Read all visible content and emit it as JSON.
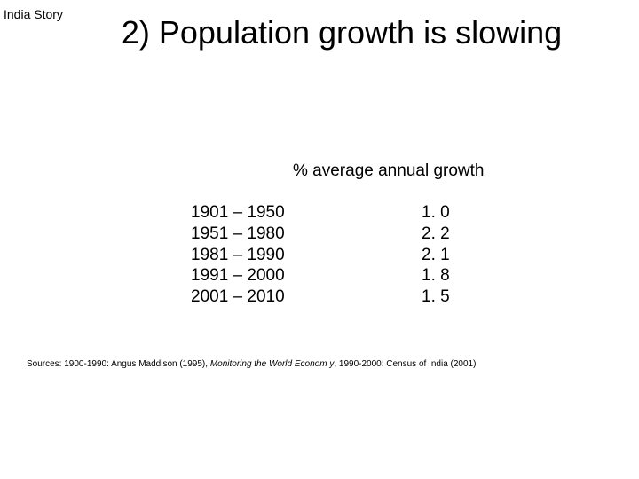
{
  "corner_label": "India Story",
  "title": "2) Population growth is slowing",
  "table_header": " % average annual growth",
  "rows": [
    {
      "period": "1901 – 1950",
      "value": "1. 0"
    },
    {
      "period": "1951 – 1980",
      "value": "2. 2"
    },
    {
      "period": "1981 – 1990",
      "value": "2. 1"
    },
    {
      "period": "1991 – 2000",
      "value": "1. 8"
    },
    {
      "period": "2001 – 2010",
      "value": "1. 5"
    }
  ],
  "sources": {
    "prefix": "Sources: 1900-1990: Angus Maddison (1995), ",
    "italic": "Monitoring the World Econom y",
    "suffix": ", 1990-2000: Census of India (2001)"
  },
  "colors": {
    "background": "#ffffff",
    "text": "#000000"
  },
  "fonts": {
    "title_size": 36,
    "body_size": 19,
    "corner_size": 14,
    "sources_size": 10
  }
}
